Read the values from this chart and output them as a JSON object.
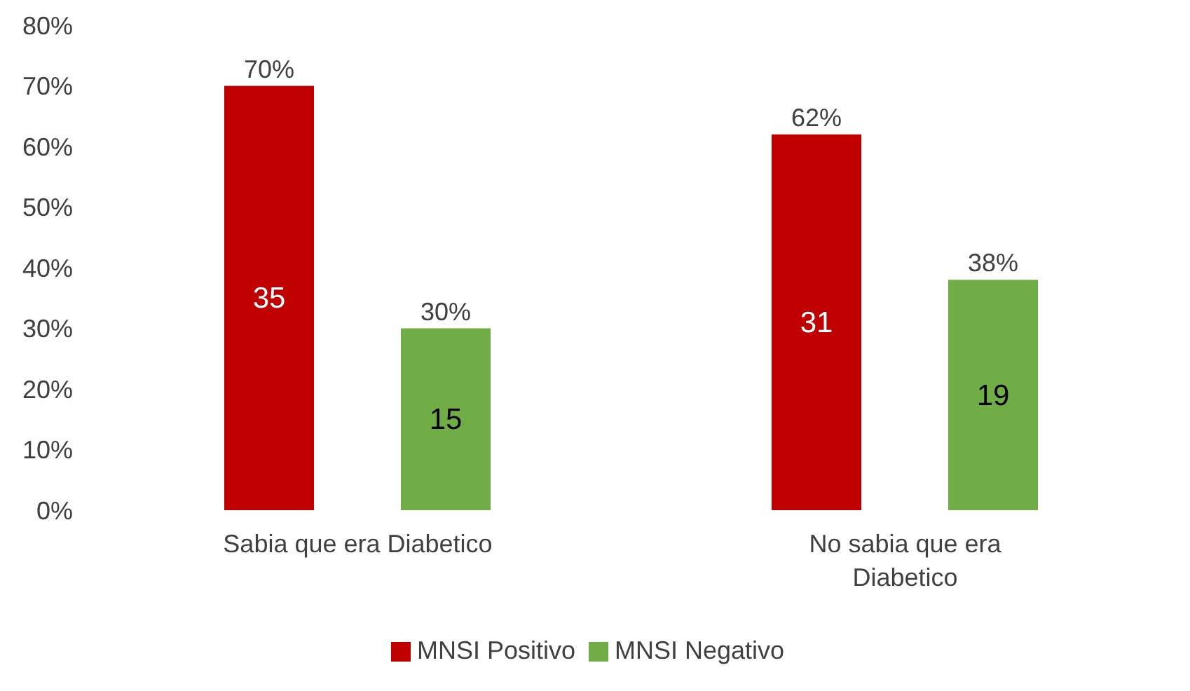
{
  "chart_data": {
    "type": "bar",
    "categories": [
      "Sabia que era Diabetico",
      "No sabia que era Diabetico"
    ],
    "series": [
      {
        "name": "MNSI Positivo",
        "color": "#c00000",
        "values": [
          70,
          62
        ],
        "value_labels": [
          "70%",
          "62%"
        ]
      },
      {
        "name": "MNSI Negativo",
        "color": "#70ad47",
        "values": [
          30,
          38
        ],
        "value_labels": [
          "30%",
          "38%"
        ]
      }
    ],
    "annotations": [
      "35",
      "15",
      "31",
      "19"
    ],
    "ylim": [
      0,
      80
    ],
    "yticks": [
      {
        "value": 0,
        "label": "0%"
      },
      {
        "value": 10,
        "label": "10%"
      },
      {
        "value": 20,
        "label": "20%"
      },
      {
        "value": 30,
        "label": "30%"
      },
      {
        "value": 40,
        "label": "40%"
      },
      {
        "value": 50,
        "label": "50%"
      },
      {
        "value": 60,
        "label": "60%"
      },
      {
        "value": 70,
        "label": "70%"
      },
      {
        "value": 80,
        "label": "80%"
      }
    ],
    "grid": false,
    "legend": "bottom"
  }
}
